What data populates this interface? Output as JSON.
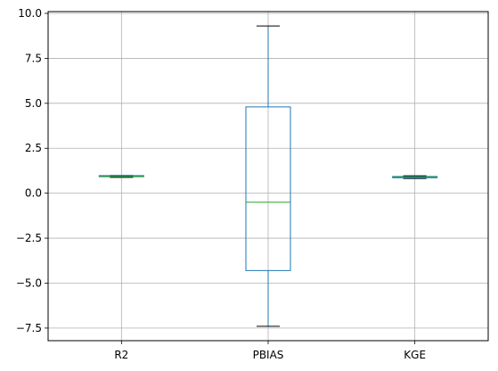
{
  "chart_data": {
    "type": "box",
    "categories": [
      "R2",
      "PBIAS",
      "KGE"
    ],
    "boxes": [
      {
        "label": "R2",
        "whisker_low": 0.88,
        "q1": 0.92,
        "median": 0.95,
        "q3": 0.98,
        "whisker_high": 0.99
      },
      {
        "label": "PBIAS",
        "whisker_low": -7.4,
        "q1": -4.3,
        "median": -0.5,
        "q3": 4.8,
        "whisker_high": 9.3
      },
      {
        "label": "KGE",
        "whisker_low": 0.82,
        "q1": 0.86,
        "median": 0.9,
        "q3": 0.93,
        "whisker_high": 0.97
      }
    ],
    "ylim": [
      -8.2,
      10.1
    ],
    "yticks": [
      -7.5,
      -5.0,
      -2.5,
      0.0,
      2.5,
      5.0,
      7.5,
      10.0
    ],
    "ytick_labels": [
      "−7.5",
      "−5.0",
      "−2.5",
      "0.0",
      "2.5",
      "5.0",
      "7.5",
      "10.0"
    ],
    "grid": true,
    "colors": {
      "box": "#1f77b4",
      "median": "#2ca02c",
      "whisker_cap": "#000000",
      "grid": "#b0b0b0"
    }
  }
}
